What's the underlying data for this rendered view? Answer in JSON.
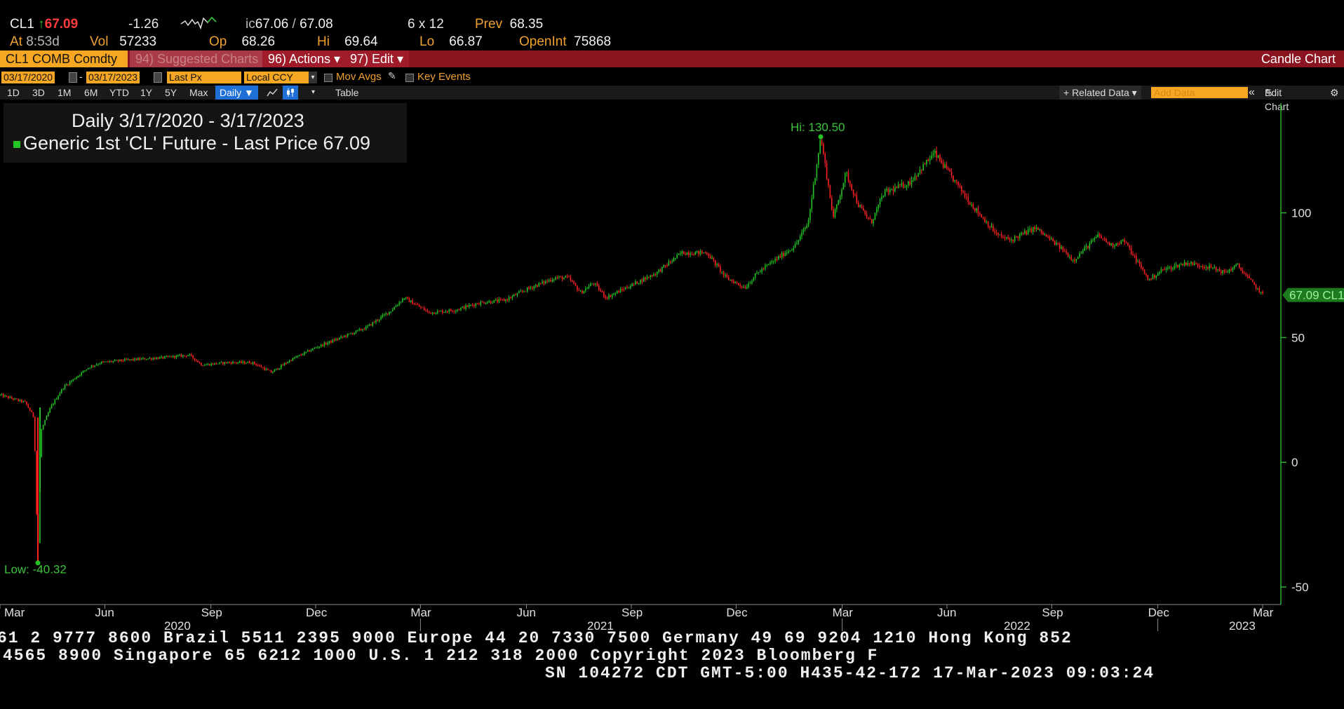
{
  "quote": {
    "ticker": "CL1",
    "arrow": "↑",
    "last": "67.09",
    "change": "-1.26",
    "bidask_prefix": "ic",
    "bid": "67.06",
    "ask": "67.08",
    "size": "6 x 12",
    "prev_label": "Prev",
    "prev": "68.35",
    "at_label": "At",
    "time": "8:53d",
    "vol_label": "Vol",
    "vol": "57233",
    "open_label": "Op",
    "open": "68.26",
    "hi_label": "Hi",
    "hi": "69.64",
    "lo_label": "Lo",
    "lo": "66.87",
    "oi_label": "OpenInt",
    "oi": "75868"
  },
  "command_bar": {
    "security": "CL1 COMB Comdty",
    "suggested": "94) Suggested Charts",
    "actions": "96) Actions ▾",
    "edit": "97) Edit ▾",
    "chart_type": "Candle Chart"
  },
  "toolbar": {
    "start_date": "03/17/2020",
    "sep": "-",
    "end_date": "03/17/2023",
    "field": "Last Px",
    "currency": "Local CCY",
    "mov_avgs": "Mov Avgs",
    "key_events": "Key Events",
    "periods": [
      "1D",
      "3D",
      "1M",
      "6M",
      "YTD",
      "1Y",
      "5Y",
      "Max"
    ],
    "frequency": "Daily ▼",
    "table": "Table",
    "related": "+ Related Data ▾",
    "add_data_placeholder": "Add Data",
    "collapse": "«",
    "edit_chart": "Edit Chart",
    "settings": "⚙"
  },
  "legend": {
    "title": "Daily 3/17/2020 - 3/17/2023",
    "series": "Generic 1st 'CL' Future - Last Price",
    "value": "67.09",
    "color": "#22c322"
  },
  "chart_data": {
    "type": "candlestick",
    "y_ticks": [
      "100",
      "50",
      "0",
      "-50"
    ],
    "y_values": [
      100,
      50,
      0,
      -50
    ],
    "ylim": [
      -57,
      144
    ],
    "x_month_labels": [
      "Mar",
      "Jun",
      "Sep",
      "Dec",
      "Mar",
      "Jun",
      "Sep",
      "Dec",
      "Mar",
      "Jun",
      "Sep",
      "Dec",
      "Mar"
    ],
    "x_year_labels": [
      "2020",
      "2021",
      "2022",
      "2023"
    ],
    "hi_label": "Hi: 130.50",
    "hi": 130.5,
    "low_label": "Low: -40.32",
    "low": -40.32,
    "last_label": "67.09 CL1",
    "last": 67.09,
    "up_color": "#22c322",
    "down_color": "#ff2020",
    "series_path": [
      [
        0.0,
        27
      ],
      [
        0.02,
        24
      ],
      [
        0.027,
        18
      ],
      [
        0.03,
        -40.32
      ],
      [
        0.032,
        12
      ],
      [
        0.04,
        22
      ],
      [
        0.05,
        30
      ],
      [
        0.06,
        34
      ],
      [
        0.07,
        38
      ],
      [
        0.08,
        40
      ],
      [
        0.1,
        41
      ],
      [
        0.13,
        42
      ],
      [
        0.15,
        43
      ],
      [
        0.16,
        39
      ],
      [
        0.18,
        40
      ],
      [
        0.2,
        40
      ],
      [
        0.215,
        36
      ],
      [
        0.23,
        41
      ],
      [
        0.25,
        46
      ],
      [
        0.27,
        50
      ],
      [
        0.29,
        54
      ],
      [
        0.31,
        61
      ],
      [
        0.32,
        66
      ],
      [
        0.33,
        63
      ],
      [
        0.34,
        60
      ],
      [
        0.36,
        61
      ],
      [
        0.38,
        64
      ],
      [
        0.4,
        65
      ],
      [
        0.42,
        70
      ],
      [
        0.44,
        74
      ],
      [
        0.45,
        74
      ],
      [
        0.46,
        68
      ],
      [
        0.47,
        72
      ],
      [
        0.48,
        66
      ],
      [
        0.5,
        71
      ],
      [
        0.52,
        76
      ],
      [
        0.54,
        84
      ],
      [
        0.56,
        84
      ],
      [
        0.575,
        74
      ],
      [
        0.59,
        70
      ],
      [
        0.6,
        76
      ],
      [
        0.63,
        87
      ],
      [
        0.64,
        96
      ],
      [
        0.65,
        130.5
      ],
      [
        0.66,
        98
      ],
      [
        0.67,
        116
      ],
      [
        0.68,
        103
      ],
      [
        0.69,
        96
      ],
      [
        0.7,
        108
      ],
      [
        0.72,
        112
      ],
      [
        0.74,
        124
      ],
      [
        0.75,
        117
      ],
      [
        0.77,
        103
      ],
      [
        0.79,
        91
      ],
      [
        0.8,
        89
      ],
      [
        0.82,
        94
      ],
      [
        0.84,
        86
      ],
      [
        0.85,
        81
      ],
      [
        0.87,
        91
      ],
      [
        0.88,
        87
      ],
      [
        0.89,
        89
      ],
      [
        0.9,
        81
      ],
      [
        0.91,
        73
      ],
      [
        0.92,
        77
      ],
      [
        0.94,
        80
      ],
      [
        0.96,
        78
      ],
      [
        0.97,
        76
      ],
      [
        0.98,
        79
      ],
      [
        0.99,
        73
      ],
      [
        1.0,
        67.09
      ]
    ]
  },
  "ticker_tape": {
    "line1": "61 2 9777 8600 Brazil 5511 2395 9000 Europe 44 20 7330 7500 Germany 49 69 9204 1210 Hong Kong 852",
    "line2": "4565 8900       Singapore 65 6212 1000       U.S. 1 212 318 2000       Copyright 2023 Bloomberg F",
    "line3": "SN 104272 CDT  GMT-5:00 H435-42-172 17-Mar-2023 09:03:24"
  }
}
